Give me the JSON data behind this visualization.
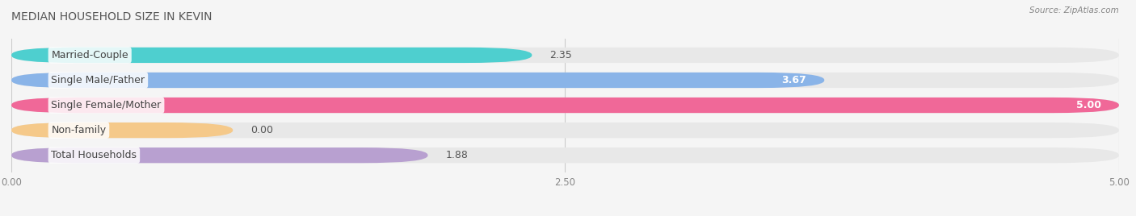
{
  "title": "MEDIAN HOUSEHOLD SIZE IN KEVIN",
  "source": "Source: ZipAtlas.com",
  "categories": [
    "Married-Couple",
    "Single Male/Father",
    "Single Female/Mother",
    "Non-family",
    "Total Households"
  ],
  "values": [
    2.35,
    3.67,
    5.0,
    0.0,
    1.88
  ],
  "bar_colors": [
    "#4ecfcf",
    "#8ab4e8",
    "#f06898",
    "#f5c98a",
    "#b8a0d0"
  ],
  "bar_bg_color": "#e8e8e8",
  "xlim": [
    0,
    5.0
  ],
  "xticks": [
    0.0,
    2.5,
    5.0
  ],
  "xtick_labels": [
    "0.00",
    "2.50",
    "5.00"
  ],
  "title_fontsize": 10,
  "label_fontsize": 9,
  "value_fontsize": 9,
  "bar_height": 0.62,
  "bar_gap": 1.0,
  "background_color": "#f5f5f5",
  "value_inside_threshold": 3.5,
  "nonfamily_bar_width": 1.0
}
